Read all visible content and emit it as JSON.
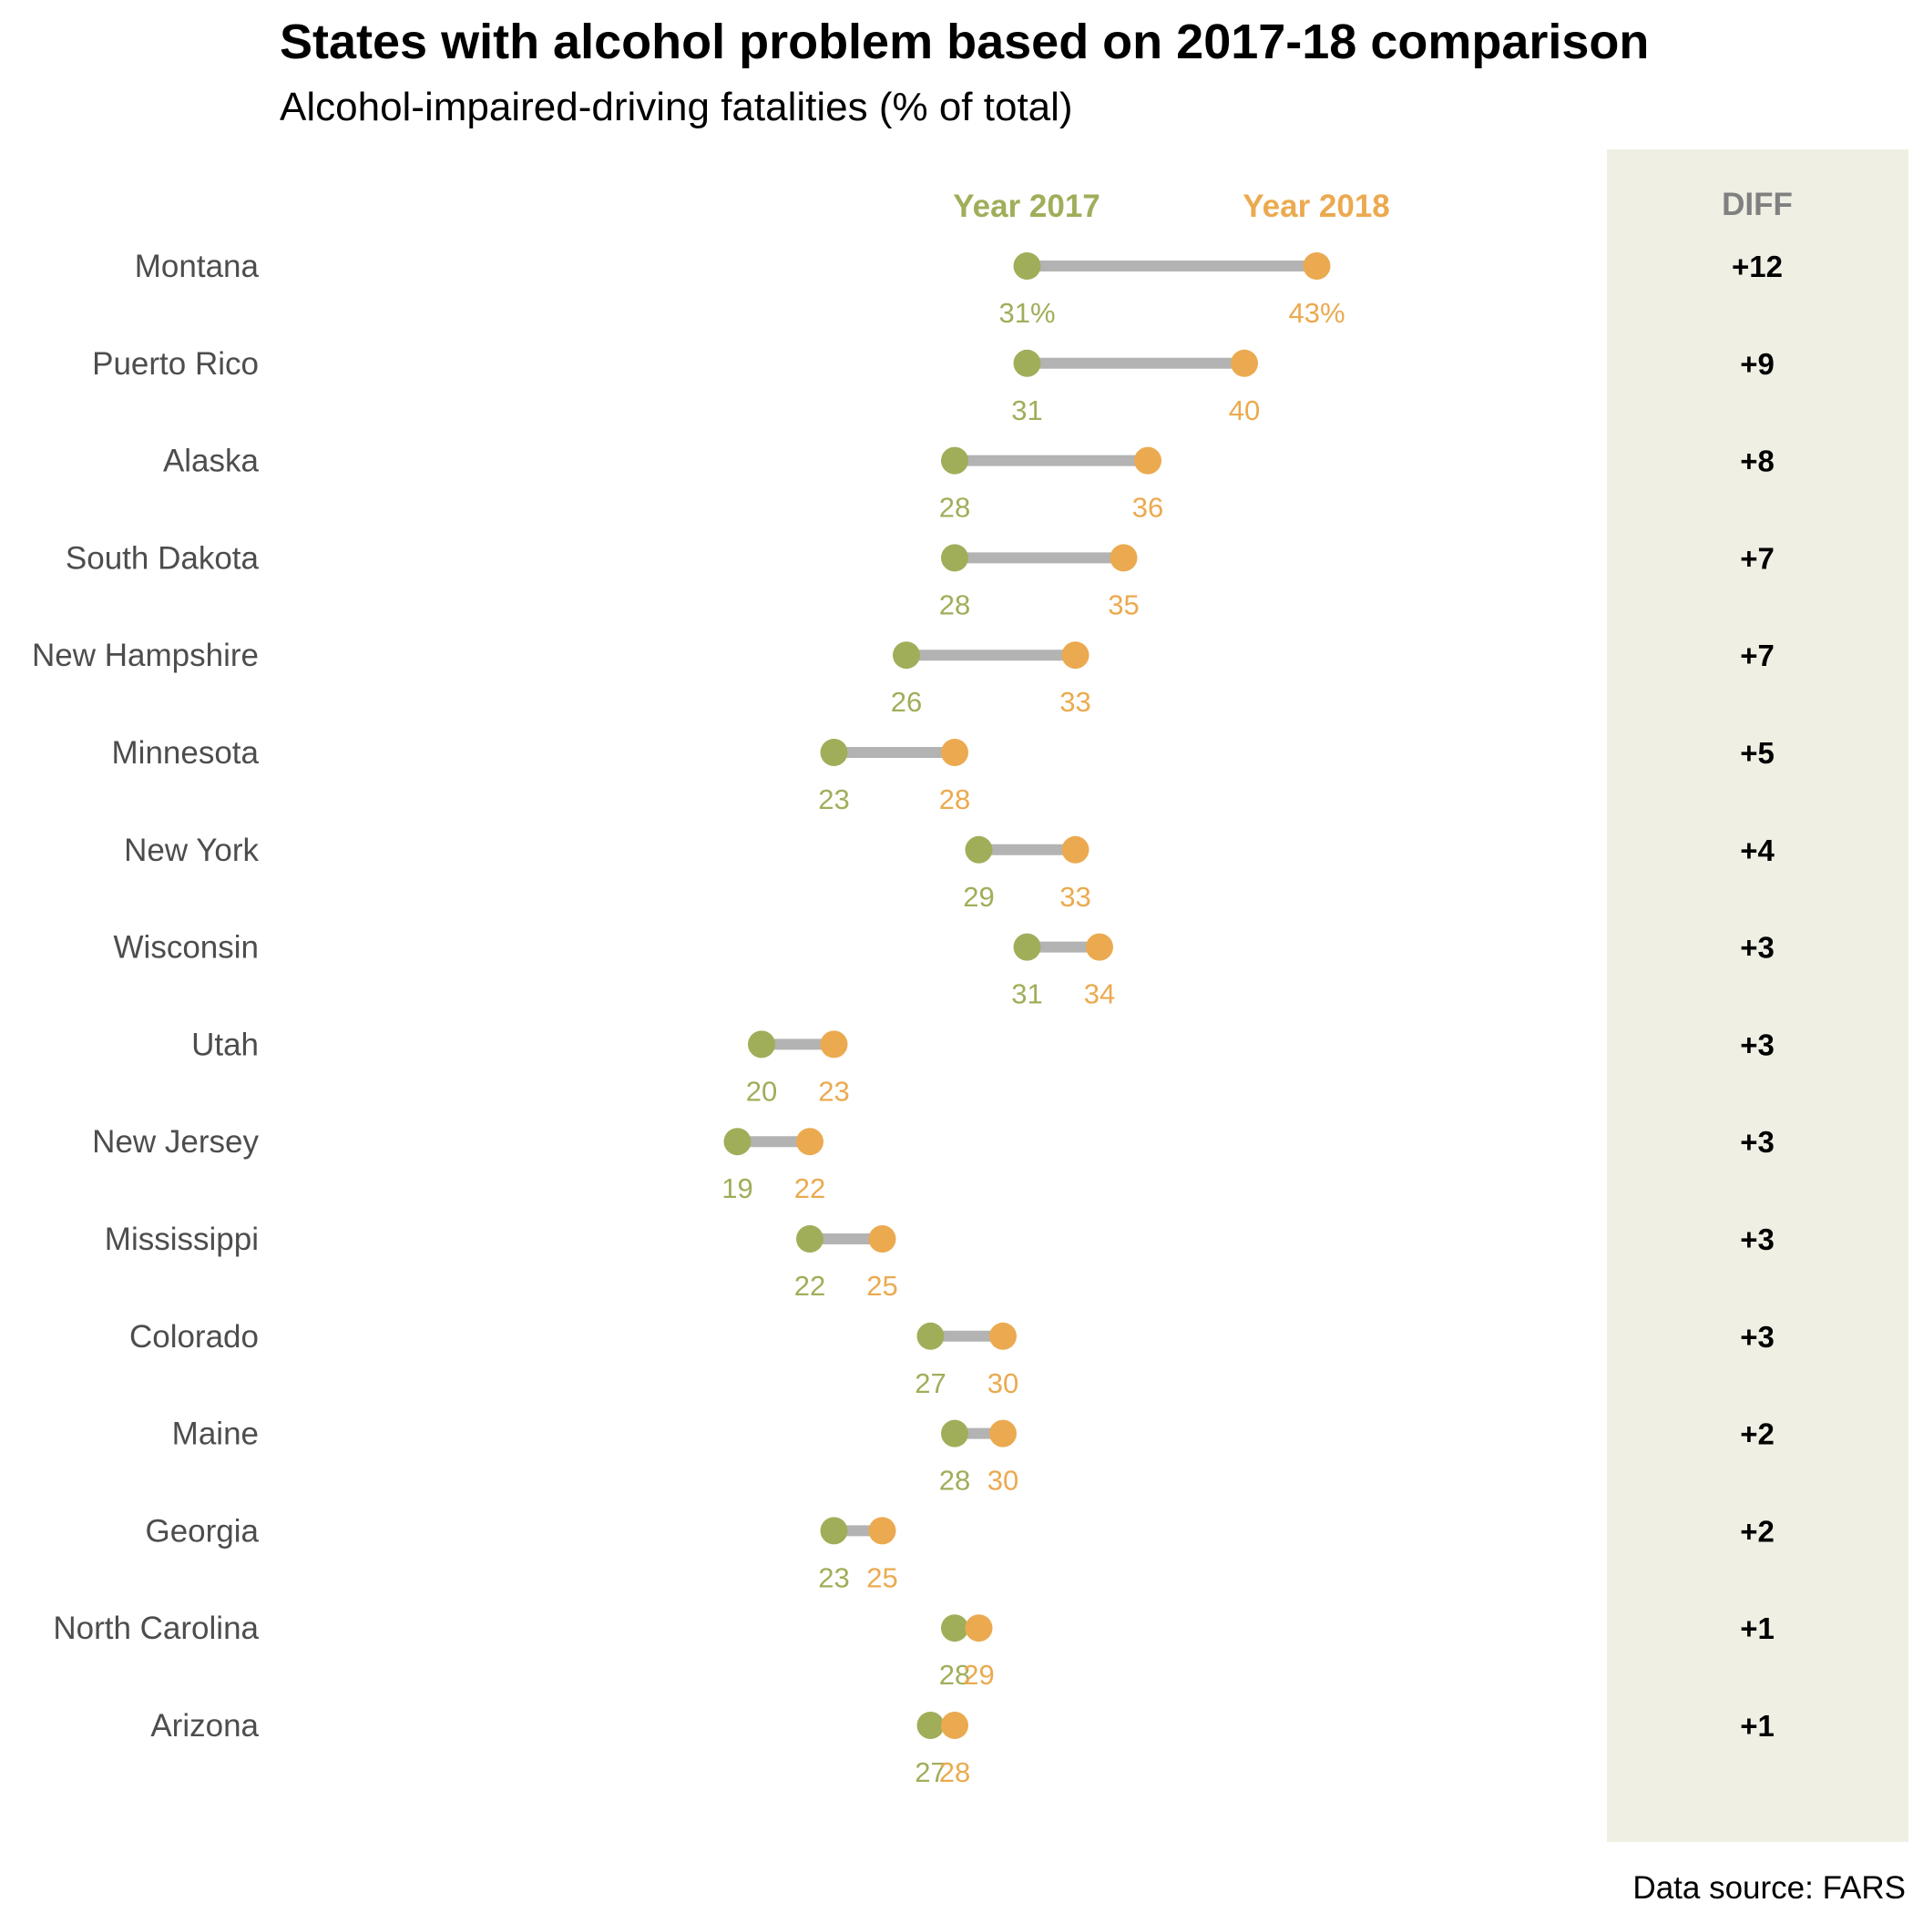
{
  "title": "States with alcohol problem based on 2017-18 comparison",
  "subtitle": "Alcohol-impaired-driving fatalities (% of total)",
  "source": "Data source: FARS",
  "colors": {
    "year_2017": "#a0ae5a",
    "year_2018": "#ebaa50",
    "connector": "#b3b3b3",
    "diff_panel": "#efefe4",
    "diff_header": "#808080",
    "state_text": "#4d4d4d"
  },
  "chart_data": {
    "type": "dumbbell",
    "categories": [
      "Montana",
      "Puerto Rico",
      "Alaska",
      "South Dakota",
      "New Hampshire",
      "Minnesota",
      "New York",
      "Wisconsin",
      "Utah",
      "New Jersey",
      "Mississippi",
      "Colorado",
      "Maine",
      "Georgia",
      "North Carolina",
      "Arizona"
    ],
    "series": [
      {
        "name": "Year 2017",
        "values": [
          31,
          31,
          28,
          28,
          26,
          23,
          29,
          31,
          20,
          19,
          22,
          27,
          28,
          23,
          28,
          27
        ]
      },
      {
        "name": "Year 2018",
        "values": [
          43,
          40,
          36,
          35,
          33,
          28,
          33,
          34,
          23,
          22,
          25,
          30,
          30,
          25,
          29,
          28
        ]
      }
    ],
    "value_labels_2017": [
      "31%",
      "31",
      "28",
      "28",
      "26",
      "23",
      "29",
      "31",
      "20",
      "19",
      "22",
      "27",
      "28",
      "23",
      "28",
      "27"
    ],
    "value_labels_2018": [
      "43%",
      "40",
      "36",
      "35",
      "33",
      "28",
      "33",
      "34",
      "23",
      "22",
      "25",
      "30",
      "30",
      "25",
      "29",
      "28"
    ],
    "diff_header": "DIFF",
    "diff": [
      "+12",
      "+9",
      "+8",
      "+7",
      "+7",
      "+5",
      "+4",
      "+3",
      "+3",
      "+3",
      "+3",
      "+3",
      "+2",
      "+2",
      "+1",
      "+1"
    ],
    "xlim": [
      12,
      47
    ],
    "grid": false,
    "legend": "column headers above first row"
  }
}
